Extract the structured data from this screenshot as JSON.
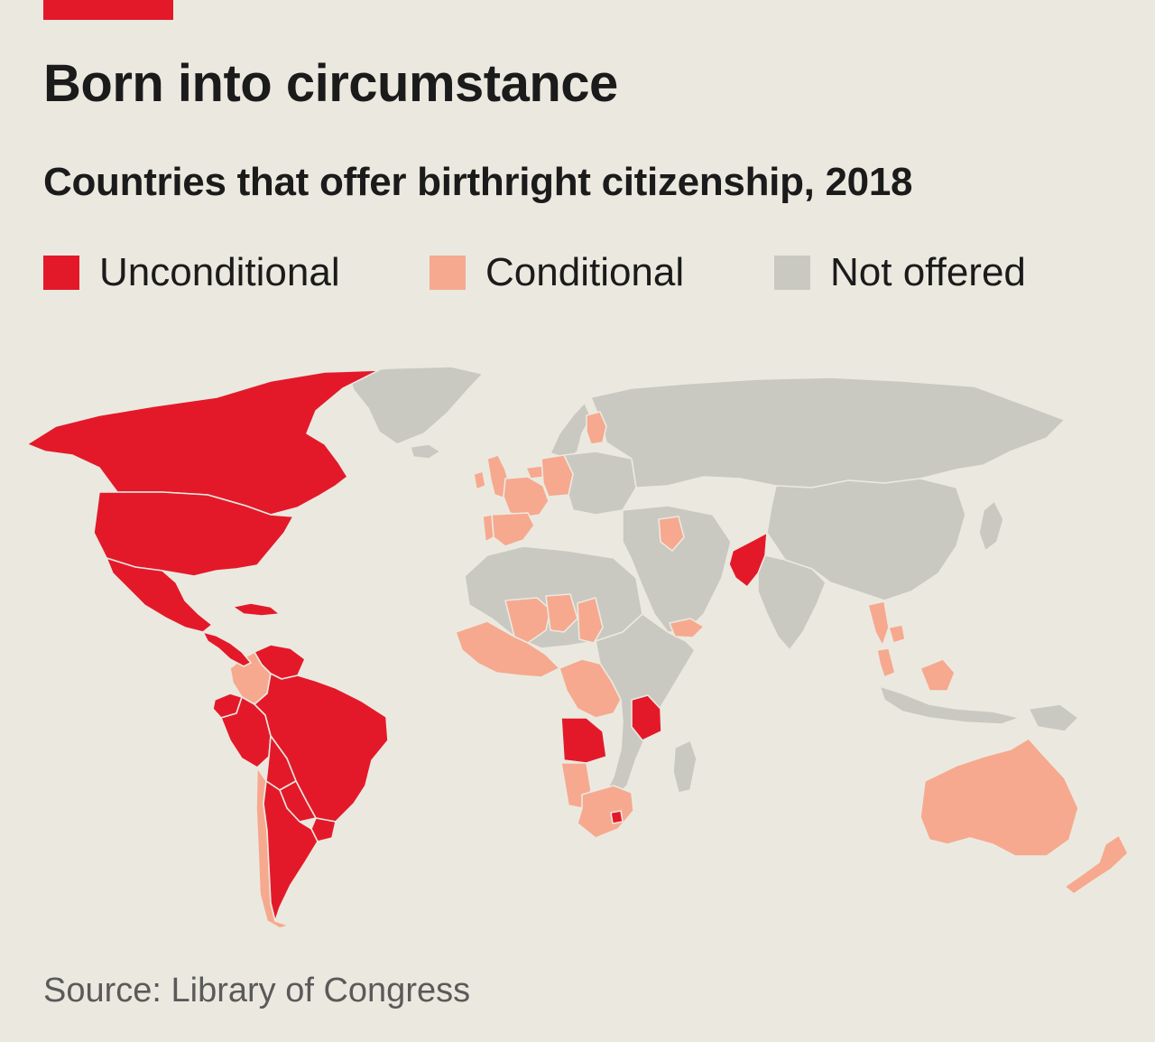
{
  "header": {
    "title": "Born into circumstance",
    "subtitle": "Countries that offer birthright citizenship, 2018"
  },
  "legend": {
    "items": [
      {
        "label": "Unconditional",
        "category": "unconditional",
        "color": "#e3192a"
      },
      {
        "label": "Conditional",
        "category": "conditional",
        "color": "#f6a98f"
      },
      {
        "label": "Not offered",
        "category": "not_offered",
        "color": "#c9c8c1"
      }
    ]
  },
  "colors": {
    "background": "#ebe9df",
    "accent": "#e3192a",
    "unconditional": "#e3192a",
    "conditional": "#f6a98f",
    "not_offered": "#c9c8c1"
  },
  "map_data": {
    "type": "choropleth",
    "projection": "world",
    "categories": [
      "unconditional",
      "conditional",
      "not_offered"
    ],
    "regions": [
      {
        "region": "Canada",
        "category": "unconditional"
      },
      {
        "region": "United States",
        "category": "unconditional"
      },
      {
        "region": "Mexico",
        "category": "unconditional"
      },
      {
        "region": "Central America",
        "category": "unconditional"
      },
      {
        "region": "Caribbean",
        "category": "unconditional"
      },
      {
        "region": "Venezuela",
        "category": "unconditional"
      },
      {
        "region": "Colombia",
        "category": "conditional"
      },
      {
        "region": "Ecuador",
        "category": "unconditional"
      },
      {
        "region": "Peru",
        "category": "unconditional"
      },
      {
        "region": "Brazil",
        "category": "unconditional"
      },
      {
        "region": "Bolivia",
        "category": "unconditional"
      },
      {
        "region": "Paraguay",
        "category": "unconditional"
      },
      {
        "region": "Uruguay",
        "category": "unconditional"
      },
      {
        "region": "Argentina",
        "category": "unconditional"
      },
      {
        "region": "Chile",
        "category": "conditional"
      },
      {
        "region": "Greenland",
        "category": "not_offered"
      },
      {
        "region": "Iceland",
        "category": "not_offered"
      },
      {
        "region": "Ireland",
        "category": "conditional"
      },
      {
        "region": "United Kingdom",
        "category": "conditional"
      },
      {
        "region": "France",
        "category": "conditional"
      },
      {
        "region": "Spain",
        "category": "conditional"
      },
      {
        "region": "Portugal",
        "category": "conditional"
      },
      {
        "region": "Belgium",
        "category": "conditional"
      },
      {
        "region": "Germany",
        "category": "conditional"
      },
      {
        "region": "Finland",
        "category": "conditional"
      },
      {
        "region": "Scandinavia",
        "category": "not_offered"
      },
      {
        "region": "Eastern Europe",
        "category": "not_offered"
      },
      {
        "region": "Russia",
        "category": "not_offered"
      },
      {
        "region": "Iraq",
        "category": "conditional"
      },
      {
        "region": "Yemen",
        "category": "conditional"
      },
      {
        "region": "Middle East",
        "category": "not_offered"
      },
      {
        "region": "Pakistan",
        "category": "unconditional"
      },
      {
        "region": "India",
        "category": "not_offered"
      },
      {
        "region": "China",
        "category": "not_offered"
      },
      {
        "region": "Japan",
        "category": "not_offered"
      },
      {
        "region": "Thailand",
        "category": "conditional"
      },
      {
        "region": "Cambodia",
        "category": "conditional"
      },
      {
        "region": "Malaysia",
        "category": "conditional"
      },
      {
        "region": "Borneo",
        "category": "conditional"
      },
      {
        "region": "Indonesia",
        "category": "not_offered"
      },
      {
        "region": "North Africa",
        "category": "not_offered"
      },
      {
        "region": "Mali",
        "category": "conditional"
      },
      {
        "region": "Niger",
        "category": "conditional"
      },
      {
        "region": "West Africa",
        "category": "conditional"
      },
      {
        "region": "Chad",
        "category": "conditional"
      },
      {
        "region": "Congo",
        "category": "conditional"
      },
      {
        "region": "Angola",
        "category": "unconditional"
      },
      {
        "region": "Tanzania",
        "category": "unconditional"
      },
      {
        "region": "Namibia",
        "category": "conditional"
      },
      {
        "region": "South Africa",
        "category": "conditional"
      },
      {
        "region": "Lesotho",
        "category": "unconditional"
      },
      {
        "region": "East Africa",
        "category": "not_offered"
      },
      {
        "region": "Madagascar",
        "category": "not_offered"
      },
      {
        "region": "Australia",
        "category": "conditional"
      },
      {
        "region": "New Zealand",
        "category": "conditional"
      },
      {
        "region": "Papua New Guinea",
        "category": "not_offered"
      }
    ]
  },
  "footer": {
    "source": "Source: Library of Congress"
  }
}
